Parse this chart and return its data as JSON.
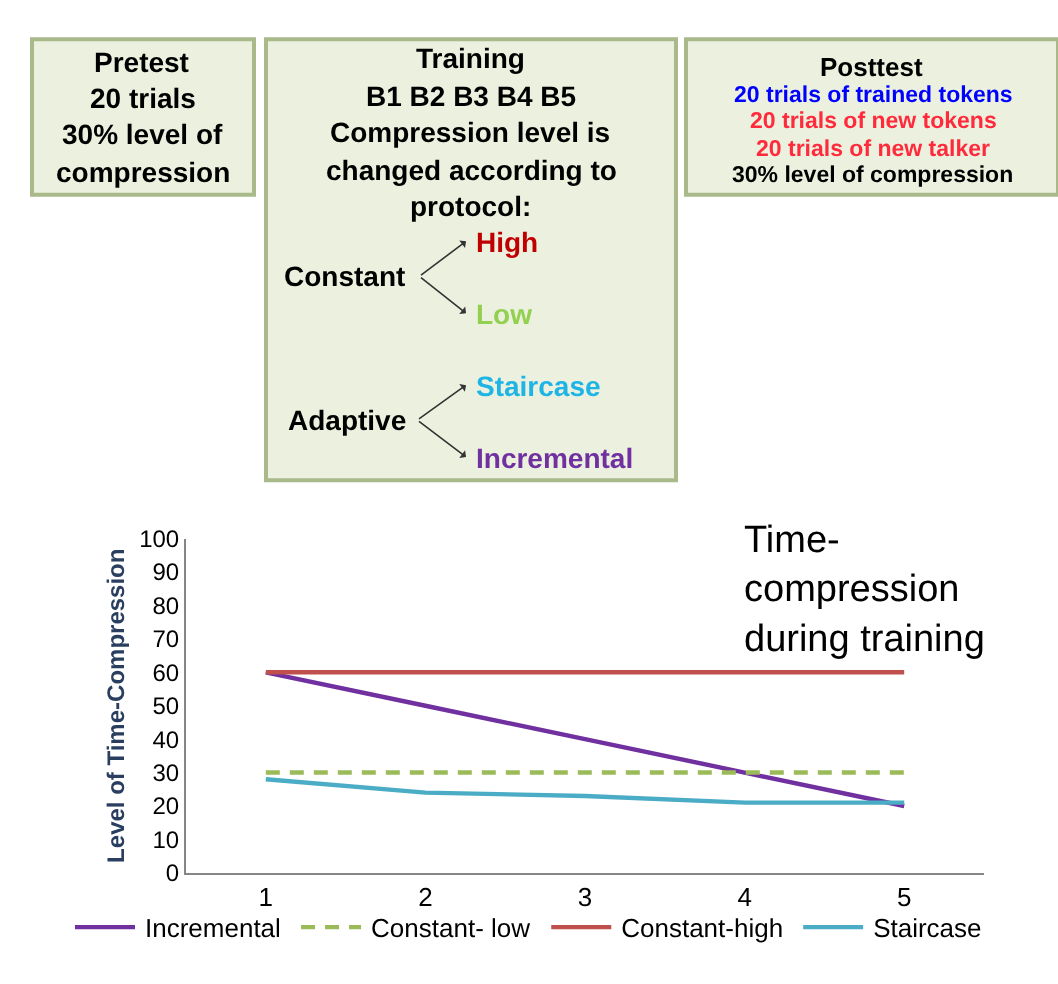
{
  "chart_data": [
    {
      "type": "other",
      "annotations": [
        "Pretest",
        "20 trials",
        "30% level of",
        "compression"
      ],
      "colors": [
        "#000000",
        "#000000",
        "#000000",
        "#000000"
      ]
    },
    {
      "type": "other",
      "annotations": [
        "Training",
        "B1 B2 B3 B4 B5",
        "Compression level is",
        "changed according to",
        "protocol:",
        "Constant",
        "High",
        "Low",
        "Adaptive",
        "Staircase",
        "Incremental"
      ],
      "colors": [
        "#000000",
        "#000000",
        "#000000",
        "#000000",
        "#000000",
        "#000000",
        "#c00000",
        "#92d050",
        "#000000",
        "#1fb4e6",
        "#7030a0"
      ]
    },
    {
      "type": "other",
      "annotations": [
        "Posttest",
        "20 trials of trained tokens",
        "20 trials of new tokens",
        "20 trials of new talker",
        "30% level of compression"
      ],
      "colors": [
        "#000000",
        "#0000ff",
        "#ff2a3c",
        "#ff2a3c",
        "#000000"
      ]
    },
    {
      "type": "line",
      "title": "Time-compression during training",
      "ylabel": "Level of Time-Compression",
      "categories": [
        "1",
        "2",
        "3",
        "4",
        "5"
      ],
      "ylim": [
        0,
        100
      ],
      "yticks": [
        0,
        10,
        20,
        30,
        40,
        50,
        60,
        70,
        80,
        90,
        100
      ],
      "legend": "bottom",
      "marker": "none",
      "series": [
        {
          "name": "Incremental",
          "color": "#7030a0",
          "values": [
            60,
            50,
            40,
            30,
            20
          ]
        },
        {
          "name": "Constant- low",
          "color": "#9bbb59",
          "line_style": "dashed",
          "values": [
            30,
            30,
            30,
            30,
            30
          ]
        },
        {
          "name": "Constant-high",
          "color": "#c0504d",
          "values": [
            60,
            60,
            60,
            60,
            60
          ]
        },
        {
          "name": "Staircase",
          "color": "#4bacc6",
          "values": [
            28,
            24,
            23,
            21,
            21
          ]
        }
      ]
    }
  ]
}
